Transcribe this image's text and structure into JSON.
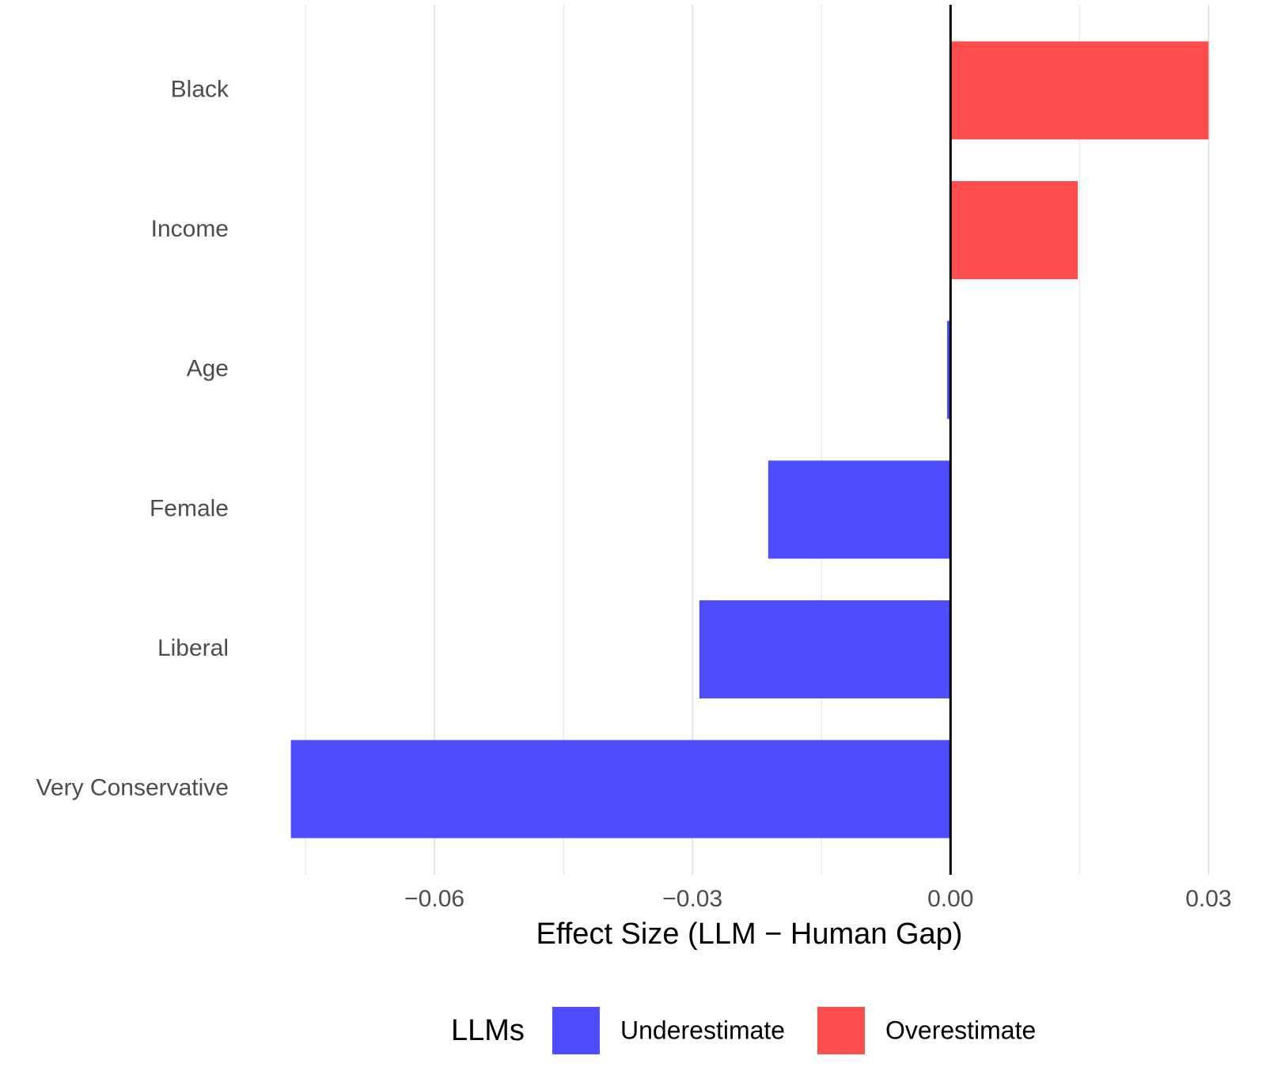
{
  "chart_data": {
    "type": "hbar",
    "categories": [
      "Black",
      "Income",
      "Age",
      "Female",
      "Liberal",
      "Very Conservative"
    ],
    "series": [
      {
        "name": "Underestimate",
        "color": "#4d4dff",
        "values": [
          null,
          null,
          -0.0004,
          -0.0212,
          -0.0292,
          -0.0767
        ]
      },
      {
        "name": "Overestimate",
        "color": "#ff4d4d",
        "values": [
          0.03,
          0.0148,
          null,
          null,
          null,
          null
        ]
      }
    ],
    "xlabel": "Effect Size (LLM − Human Gap)",
    "legend_title": "LLMs",
    "legend_position": "bottom",
    "xlim": [
      -0.082,
      0.0353
    ],
    "xticks": [
      {
        "value": -0.06,
        "label": "−0.06"
      },
      {
        "value": -0.03,
        "label": "−0.03"
      },
      {
        "value": 0,
        "label": "0.00"
      },
      {
        "value": 0.03,
        "label": "0.03"
      }
    ],
    "minor_xticks": [
      -0.075,
      -0.045,
      -0.015,
      0.015
    ],
    "vline": 0,
    "grid": true
  }
}
